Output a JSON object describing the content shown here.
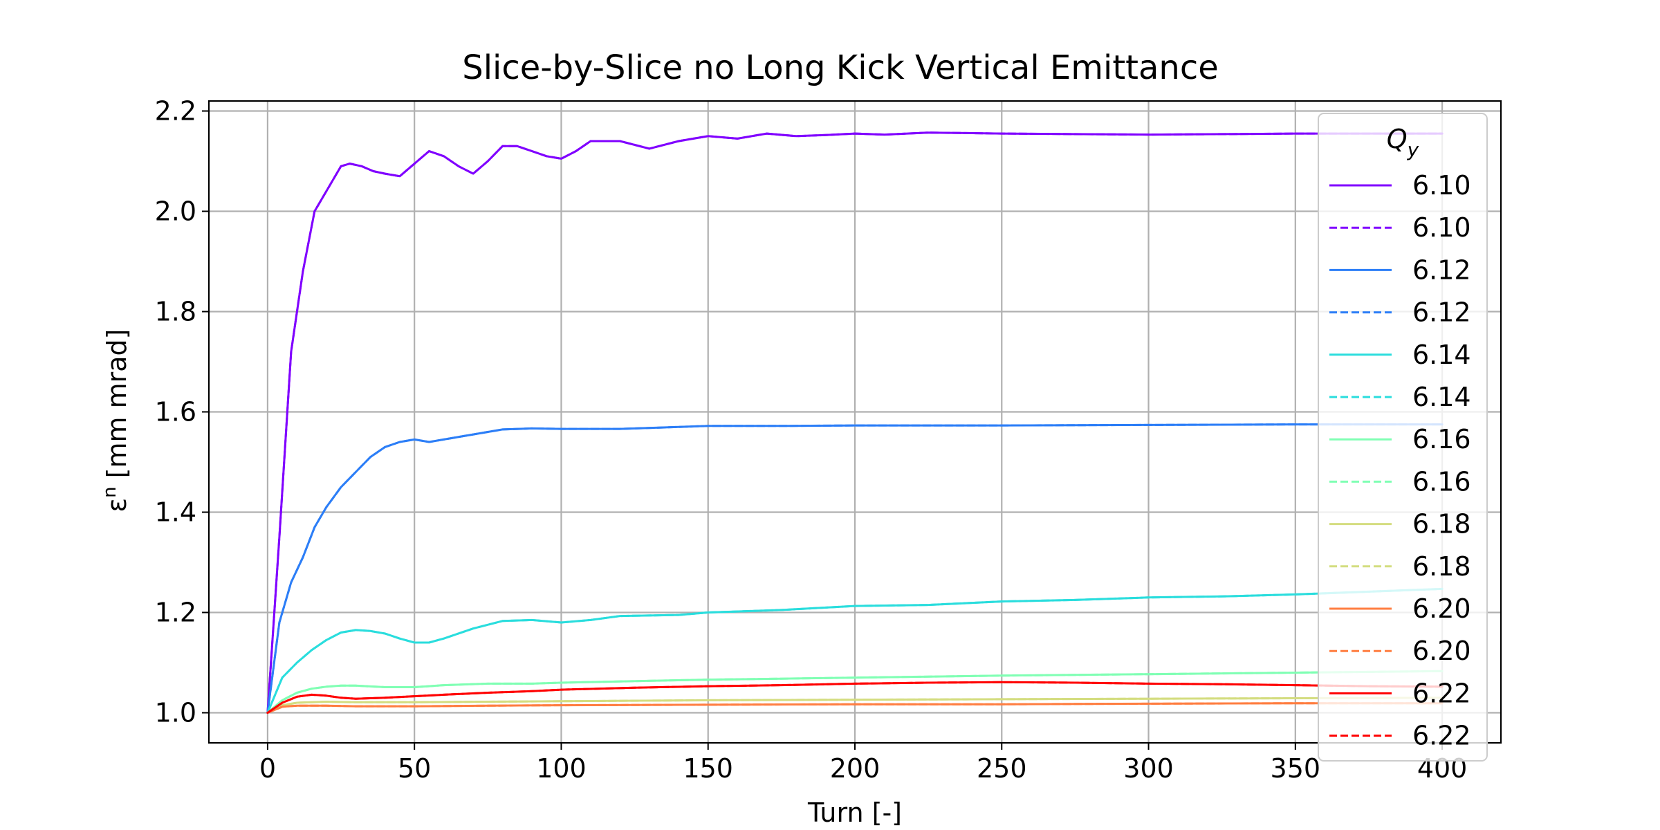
{
  "chart_data": {
    "type": "line",
    "title": "Slice-by-Slice no Long Kick Vertical Emittance",
    "xlabel": "Turn [-]",
    "ylabel": "ε",
    "ylabel_sup": "n",
    "ylabel_units": " [mm mrad]",
    "xlim": [
      -20,
      420
    ],
    "ylim": [
      0.94,
      2.22
    ],
    "xticks": [
      0,
      50,
      100,
      150,
      200,
      250,
      300,
      350,
      400
    ],
    "yticks": [
      1.0,
      1.2,
      1.4,
      1.6,
      1.8,
      2.0,
      2.2
    ],
    "ytick_labels": [
      "1.0",
      "1.2",
      "1.4",
      "1.6",
      "1.8",
      "2.0",
      "2.2"
    ],
    "grid": true,
    "legend": {
      "title": "Q",
      "title_sub": "y",
      "placement": "right",
      "entries": [
        {
          "label": "6.10",
          "color": "#8000ff",
          "dash": false
        },
        {
          "label": "6.10",
          "color": "#8000ff",
          "dash": true
        },
        {
          "label": "6.12",
          "color": "#2c7ef7",
          "dash": false
        },
        {
          "label": "6.12",
          "color": "#2c7ef7",
          "dash": true
        },
        {
          "label": "6.14",
          "color": "#2adddd",
          "dash": false
        },
        {
          "label": "6.14",
          "color": "#2adddd",
          "dash": true
        },
        {
          "label": "6.16",
          "color": "#80ffb4",
          "dash": false
        },
        {
          "label": "6.16",
          "color": "#80ffb4",
          "dash": true
        },
        {
          "label": "6.18",
          "color": "#d4dd80",
          "dash": false
        },
        {
          "label": "6.18",
          "color": "#d4dd80",
          "dash": true
        },
        {
          "label": "6.20",
          "color": "#ff7e41",
          "dash": false
        },
        {
          "label": "6.20",
          "color": "#ff7e41",
          "dash": true
        },
        {
          "label": "6.22",
          "color": "#ff0000",
          "dash": false
        },
        {
          "label": "6.22",
          "color": "#ff0000",
          "dash": true
        }
      ]
    },
    "series": [
      {
        "color": "#8000ff",
        "dash": false,
        "x": [
          0,
          4,
          8,
          12,
          16,
          20,
          25,
          28,
          32,
          36,
          40,
          45,
          50,
          55,
          60,
          65,
          70,
          75,
          80,
          85,
          90,
          95,
          100,
          105,
          110,
          120,
          130,
          140,
          150,
          160,
          170,
          180,
          190,
          200,
          210,
          225,
          250,
          275,
          300,
          325,
          350,
          400
        ],
        "y": [
          1.0,
          1.35,
          1.72,
          1.88,
          2.0,
          2.04,
          2.09,
          2.095,
          2.09,
          2.08,
          2.075,
          2.07,
          2.095,
          2.12,
          2.11,
          2.09,
          2.075,
          2.1,
          2.13,
          2.13,
          2.12,
          2.11,
          2.105,
          2.12,
          2.14,
          2.14,
          2.125,
          2.14,
          2.15,
          2.145,
          2.155,
          2.15,
          2.152,
          2.155,
          2.153,
          2.157,
          2.155,
          2.154,
          2.153,
          2.154,
          2.155,
          2.155
        ]
      },
      {
        "color": "#8000ff",
        "dash": true,
        "x": [
          0,
          4,
          8,
          12,
          16,
          20,
          25,
          28,
          32,
          36,
          40,
          45,
          50,
          55,
          60,
          65,
          70,
          75,
          80,
          85,
          90,
          95,
          100,
          105,
          110,
          120,
          130,
          140,
          150,
          160,
          170,
          180,
          190,
          200,
          210,
          225,
          250,
          275,
          300,
          325,
          350,
          400
        ],
        "y": [
          1.0,
          1.35,
          1.72,
          1.88,
          2.0,
          2.04,
          2.09,
          2.095,
          2.09,
          2.08,
          2.075,
          2.07,
          2.095,
          2.12,
          2.11,
          2.09,
          2.075,
          2.1,
          2.13,
          2.13,
          2.12,
          2.11,
          2.105,
          2.12,
          2.14,
          2.14,
          2.125,
          2.14,
          2.15,
          2.145,
          2.155,
          2.15,
          2.152,
          2.155,
          2.153,
          2.157,
          2.155,
          2.154,
          2.153,
          2.154,
          2.155,
          2.155
        ]
      },
      {
        "color": "#2c7ef7",
        "dash": false,
        "x": [
          0,
          4,
          8,
          12,
          16,
          20,
          25,
          30,
          35,
          40,
          45,
          50,
          55,
          60,
          70,
          80,
          90,
          100,
          120,
          140,
          150,
          175,
          200,
          250,
          300,
          350,
          400
        ],
        "y": [
          1.0,
          1.18,
          1.26,
          1.31,
          1.37,
          1.41,
          1.45,
          1.48,
          1.51,
          1.53,
          1.54,
          1.545,
          1.54,
          1.545,
          1.555,
          1.565,
          1.567,
          1.566,
          1.566,
          1.57,
          1.572,
          1.572,
          1.573,
          1.573,
          1.574,
          1.575,
          1.575
        ]
      },
      {
        "color": "#2c7ef7",
        "dash": true,
        "x": [
          0,
          4,
          8,
          12,
          16,
          20,
          25,
          30,
          35,
          40,
          45,
          50,
          55,
          60,
          70,
          80,
          90,
          100,
          120,
          140,
          150,
          175,
          200,
          250,
          300,
          350,
          400
        ],
        "y": [
          1.0,
          1.18,
          1.26,
          1.31,
          1.37,
          1.41,
          1.45,
          1.48,
          1.51,
          1.53,
          1.54,
          1.545,
          1.54,
          1.545,
          1.555,
          1.565,
          1.567,
          1.566,
          1.566,
          1.57,
          1.572,
          1.572,
          1.573,
          1.573,
          1.574,
          1.575,
          1.575
        ]
      },
      {
        "color": "#2adddd",
        "dash": false,
        "x": [
          0,
          5,
          10,
          15,
          20,
          25,
          30,
          35,
          40,
          45,
          50,
          55,
          60,
          70,
          80,
          90,
          100,
          110,
          120,
          140,
          150,
          175,
          200,
          225,
          250,
          275,
          300,
          325,
          350,
          400
        ],
        "y": [
          1.0,
          1.07,
          1.1,
          1.125,
          1.145,
          1.16,
          1.165,
          1.163,
          1.158,
          1.148,
          1.14,
          1.14,
          1.148,
          1.168,
          1.183,
          1.185,
          1.18,
          1.185,
          1.193,
          1.195,
          1.2,
          1.205,
          1.213,
          1.215,
          1.222,
          1.225,
          1.23,
          1.232,
          1.236,
          1.247
        ]
      },
      {
        "color": "#2adddd",
        "dash": true,
        "x": [
          0,
          5,
          10,
          15,
          20,
          25,
          30,
          35,
          40,
          45,
          50,
          55,
          60,
          70,
          80,
          90,
          100,
          110,
          120,
          140,
          150,
          175,
          200,
          225,
          250,
          275,
          300,
          325,
          350,
          400
        ],
        "y": [
          1.0,
          1.07,
          1.1,
          1.125,
          1.145,
          1.16,
          1.165,
          1.163,
          1.158,
          1.148,
          1.14,
          1.14,
          1.148,
          1.168,
          1.183,
          1.185,
          1.18,
          1.185,
          1.193,
          1.195,
          1.2,
          1.205,
          1.213,
          1.215,
          1.222,
          1.225,
          1.23,
          1.232,
          1.236,
          1.247
        ]
      },
      {
        "color": "#80ffb4",
        "dash": false,
        "x": [
          0,
          5,
          10,
          15,
          20,
          25,
          30,
          40,
          50,
          60,
          75,
          90,
          100,
          125,
          150,
          175,
          200,
          250,
          300,
          350,
          400
        ],
        "y": [
          1.0,
          1.025,
          1.04,
          1.048,
          1.052,
          1.054,
          1.054,
          1.051,
          1.051,
          1.055,
          1.058,
          1.058,
          1.06,
          1.063,
          1.066,
          1.068,
          1.07,
          1.074,
          1.077,
          1.08,
          1.083
        ]
      },
      {
        "color": "#80ffb4",
        "dash": true,
        "x": [
          0,
          5,
          10,
          15,
          20,
          25,
          30,
          40,
          50,
          60,
          75,
          90,
          100,
          125,
          150,
          175,
          200,
          250,
          300,
          350,
          400
        ],
        "y": [
          1.0,
          1.025,
          1.04,
          1.048,
          1.052,
          1.054,
          1.054,
          1.051,
          1.051,
          1.055,
          1.058,
          1.058,
          1.06,
          1.063,
          1.066,
          1.068,
          1.07,
          1.074,
          1.077,
          1.08,
          1.083
        ]
      },
      {
        "color": "#d4dd80",
        "dash": false,
        "x": [
          0,
          5,
          10,
          20,
          30,
          50,
          75,
          100,
          150,
          200,
          250,
          300,
          350,
          400
        ],
        "y": [
          1.0,
          1.015,
          1.02,
          1.022,
          1.021,
          1.021,
          1.022,
          1.023,
          1.025,
          1.026,
          1.027,
          1.028,
          1.029,
          1.03
        ]
      },
      {
        "color": "#d4dd80",
        "dash": true,
        "x": [
          0,
          5,
          10,
          20,
          30,
          50,
          75,
          100,
          150,
          200,
          250,
          300,
          350,
          400
        ],
        "y": [
          1.0,
          1.015,
          1.02,
          1.022,
          1.021,
          1.021,
          1.022,
          1.023,
          1.025,
          1.026,
          1.027,
          1.028,
          1.029,
          1.03
        ]
      },
      {
        "color": "#ff7e41",
        "dash": false,
        "x": [
          0,
          5,
          10,
          20,
          30,
          50,
          75,
          100,
          150,
          200,
          250,
          300,
          350,
          400
        ],
        "y": [
          1.0,
          1.012,
          1.014,
          1.014,
          1.013,
          1.013,
          1.014,
          1.015,
          1.016,
          1.017,
          1.017,
          1.018,
          1.019,
          1.019
        ]
      },
      {
        "color": "#ff7e41",
        "dash": true,
        "x": [
          0,
          5,
          10,
          20,
          30,
          50,
          75,
          100,
          150,
          200,
          250,
          300,
          350,
          400
        ],
        "y": [
          1.0,
          1.012,
          1.014,
          1.014,
          1.013,
          1.013,
          1.014,
          1.015,
          1.016,
          1.017,
          1.017,
          1.018,
          1.019,
          1.019
        ]
      },
      {
        "color": "#ff0000",
        "dash": false,
        "x": [
          0,
          5,
          10,
          15,
          20,
          25,
          30,
          40,
          50,
          60,
          75,
          90,
          100,
          125,
          150,
          175,
          200,
          225,
          250,
          275,
          300,
          325,
          350,
          375,
          400
        ],
        "y": [
          1.0,
          1.02,
          1.032,
          1.036,
          1.034,
          1.03,
          1.028,
          1.03,
          1.033,
          1.036,
          1.04,
          1.043,
          1.046,
          1.05,
          1.053,
          1.055,
          1.058,
          1.06,
          1.061,
          1.06,
          1.058,
          1.057,
          1.055,
          1.053,
          1.052
        ]
      },
      {
        "color": "#ff0000",
        "dash": true,
        "x": [
          0,
          5,
          10,
          15,
          20,
          25,
          30,
          40,
          50,
          60,
          75,
          90,
          100,
          125,
          150,
          175,
          200,
          225,
          250,
          275,
          300,
          325,
          350,
          375,
          400
        ],
        "y": [
          1.0,
          1.02,
          1.032,
          1.036,
          1.034,
          1.03,
          1.028,
          1.03,
          1.033,
          1.036,
          1.04,
          1.043,
          1.046,
          1.05,
          1.053,
          1.055,
          1.058,
          1.06,
          1.061,
          1.06,
          1.058,
          1.057,
          1.055,
          1.053,
          1.052
        ]
      }
    ]
  }
}
